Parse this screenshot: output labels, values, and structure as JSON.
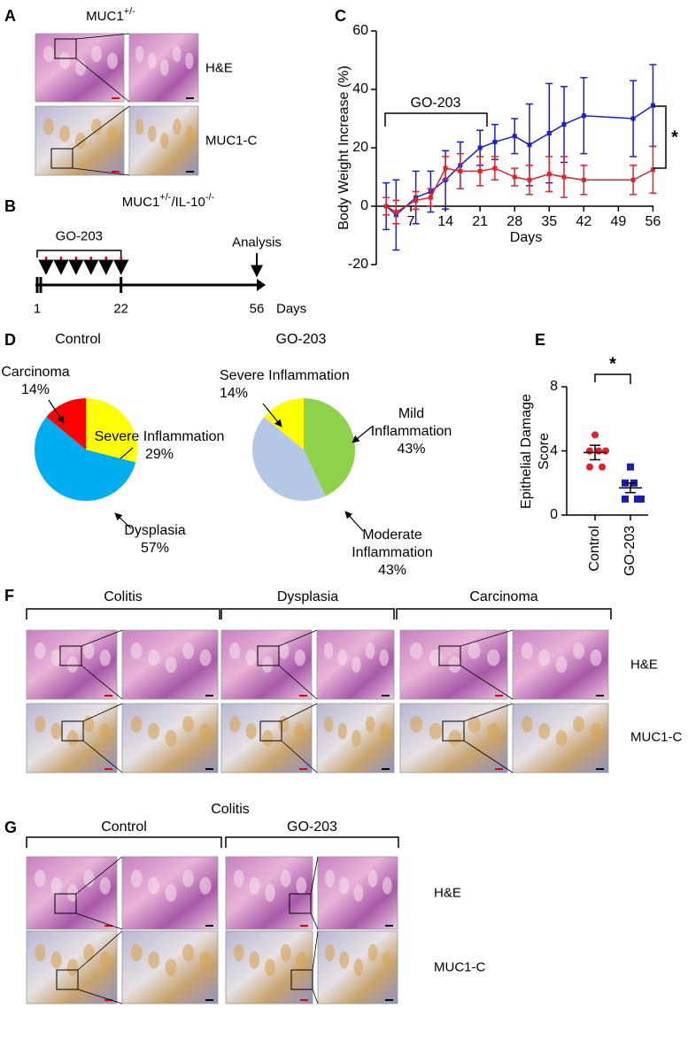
{
  "panels": {
    "A": {
      "letter": "A",
      "title": {
        "base": "MUC1",
        "sup": "+/-"
      },
      "rows": [
        "H&E",
        "MUC1-C"
      ]
    },
    "B": {
      "letter": "B",
      "title": {
        "base": "MUC1",
        "sup1": "+/-",
        "mid": "/IL-10",
        "sup2": "-/-"
      },
      "treatment": "GO-203",
      "event": "Analysis",
      "timeline_days": [
        1,
        22,
        56
      ],
      "unit": "Days"
    },
    "C": {
      "letter": "C"
    },
    "D": {
      "letter": "D"
    },
    "E": {
      "letter": "E"
    },
    "F": {
      "letter": "F",
      "groups": [
        "Colitis",
        "Dysplasia",
        "Carcinoma"
      ],
      "rows": [
        "H&E",
        "MUC1-C"
      ]
    },
    "G": {
      "letter": "G",
      "title": "Colitis",
      "groups": [
        "Control",
        "GO-203"
      ],
      "rows": [
        "H&E",
        "MUC1-C"
      ]
    }
  },
  "chart_data": [
    {
      "type": "line",
      "ylabel": "Body Weight Increase (%)",
      "xlabel": "Days",
      "annotations": [
        "GO-203",
        "*"
      ],
      "x": [
        2,
        4,
        8,
        11,
        14,
        17,
        21,
        24,
        28,
        31,
        35,
        38,
        42,
        52,
        56
      ],
      "xlim": [
        0,
        57
      ],
      "xticks": [
        7,
        14,
        21,
        28,
        35,
        42,
        49,
        56
      ],
      "ylim": [
        -20,
        60
      ],
      "yticks": [
        -20,
        0,
        20,
        40,
        60
      ],
      "series": [
        {
          "color": "#1c1cd4",
          "values": [
            0,
            -3,
            3,
            5,
            9,
            14,
            20,
            22,
            24,
            21,
            25,
            28,
            31,
            30,
            34.5
          ],
          "errors": [
            8,
            12,
            9,
            7,
            10,
            8,
            6,
            6,
            6,
            14,
            17,
            13,
            13,
            13,
            14
          ]
        },
        {
          "color": "#e4202a",
          "values": [
            0,
            -2,
            2,
            3,
            13,
            12,
            12,
            13,
            10,
            9,
            11,
            10,
            9,
            9,
            12.5
          ],
          "errors": [
            3,
            4,
            3,
            3,
            4,
            6,
            5,
            4,
            3,
            5,
            6,
            7,
            5,
            5,
            8
          ]
        }
      ]
    },
    {
      "type": "pie",
      "title": "Control",
      "categories": [
        "Severe Inflammation",
        "Dysplasia",
        "Carcinoma"
      ],
      "values": [
        29,
        57,
        14
      ],
      "value_labels": [
        "29%",
        "57%",
        "14%"
      ],
      "colors": [
        "#ffff00",
        "#00aeef",
        "#ff0000"
      ]
    },
    {
      "type": "pie",
      "title": "GO-203",
      "categories": [
        "Mild Inflammation",
        "Moderate Inflammation",
        "Severe Inflammation"
      ],
      "values": [
        43,
        43,
        14
      ],
      "value_labels": [
        "43%",
        "43%",
        "14%"
      ],
      "colors": [
        "#8ed14a",
        "#b4c7e7",
        "#ffff00"
      ]
    },
    {
      "type": "scatter",
      "ylabel": "Epithelial Damage Score",
      "annotation": "*",
      "categories": [
        "Control",
        "GO-203"
      ],
      "ylim": [
        0,
        8
      ],
      "yticks": [
        0,
        4,
        8
      ],
      "series": [
        {
          "color": "#e4202a",
          "marker": "circle",
          "values": [
            5,
            4,
            4,
            4,
            3,
            3
          ],
          "mean": 3.9,
          "sem": 0.45
        },
        {
          "color": "#1c1cb0",
          "marker": "square",
          "values": [
            3,
            2,
            2,
            1,
            1,
            1
          ],
          "mean": 1.7,
          "sem": 0.3
        }
      ]
    }
  ]
}
